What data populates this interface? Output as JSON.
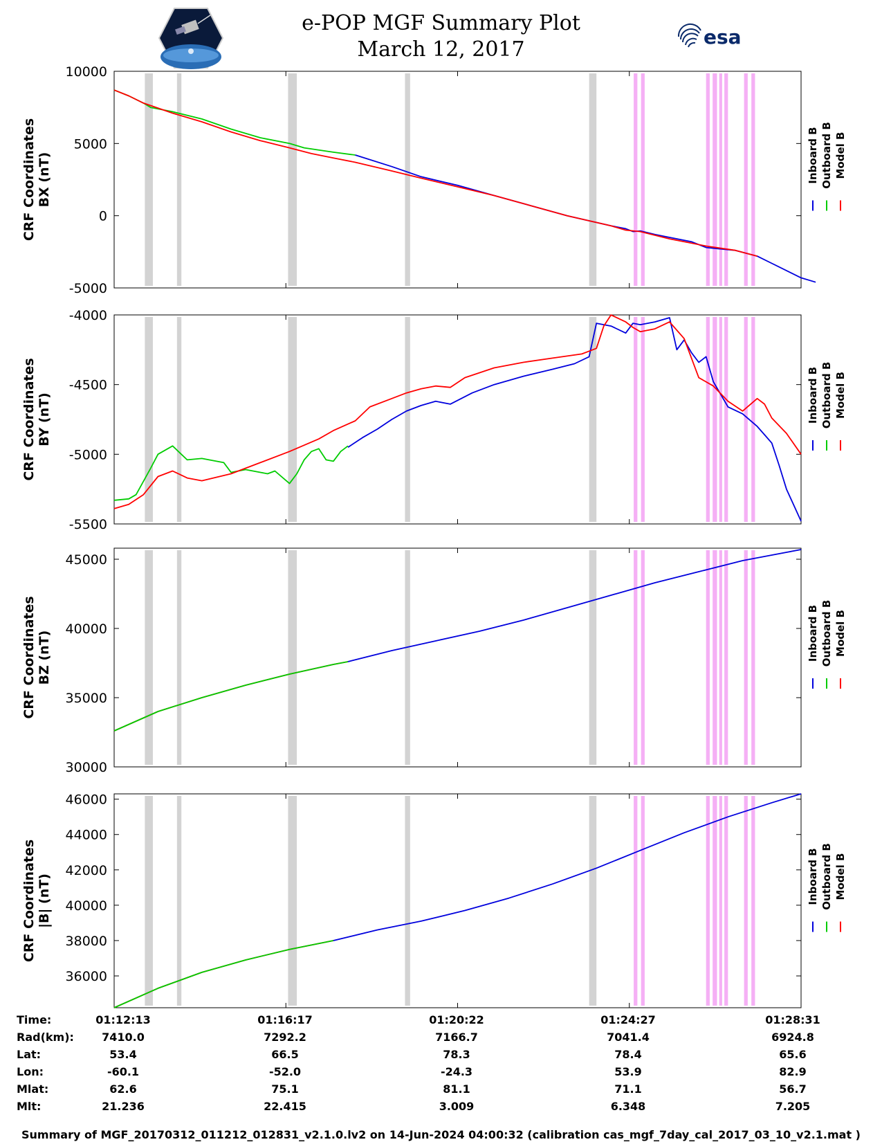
{
  "header": {
    "title": "e-POP MGF Summary Plot",
    "date": "March 12, 2017",
    "left_logo": "e-POP CASSIOPE satellite logo",
    "right_logo_text": "esa"
  },
  "chart_data": [
    {
      "type": "line",
      "name": "BX",
      "ylabel": [
        "CRF Coordinates",
        "BX (nT)"
      ],
      "ylim": [
        -5000,
        10000
      ],
      "yticks": [
        10000,
        5000,
        0,
        -5000
      ],
      "legend": [
        "Inboard B",
        "Outboard B",
        "Model B"
      ],
      "series": [
        {
          "name": "Outboard B",
          "color": "#00cc00",
          "x": [
            0,
            20,
            40,
            50,
            80,
            120,
            160,
            200,
            240,
            260,
            300,
            330
          ],
          "values": [
            8700,
            8300,
            7800,
            7500,
            7200,
            6700,
            6000,
            5400,
            5000,
            4700,
            4400,
            4200
          ]
        },
        {
          "name": "Inboard B",
          "color": "#0000dd",
          "x": [
            330,
            380,
            420,
            470,
            520,
            570,
            620,
            680,
            700,
            710,
            720,
            740,
            760,
            790,
            810,
            830,
            850,
            880,
            900,
            940,
            960
          ],
          "values": [
            4200,
            3400,
            2700,
            2100,
            1400,
            700,
            0,
            -700,
            -900,
            -1100,
            -1050,
            -1300,
            -1500,
            -1800,
            -2200,
            -2300,
            -2400,
            -2800,
            -3300,
            -4300,
            -4600
          ]
        },
        {
          "name": "Model B",
          "color": "#ff0000",
          "x": [
            0,
            20,
            40,
            80,
            120,
            160,
            200,
            240,
            270,
            300,
            330,
            380,
            420,
            470,
            520,
            570,
            620,
            680,
            700,
            720,
            760,
            790,
            810,
            850,
            880
          ],
          "values": [
            8700,
            8300,
            7800,
            7100,
            6500,
            5800,
            5200,
            4700,
            4300,
            4000,
            3700,
            3100,
            2600,
            2000,
            1400,
            700,
            0,
            -700,
            -1000,
            -1100,
            -1600,
            -1900,
            -2100,
            -2400,
            -2800
          ]
        }
      ]
    },
    {
      "type": "line",
      "name": "BY",
      "ylabel": [
        "CRF Coordinates",
        "BY (nT)"
      ],
      "ylim": [
        -5500,
        -4000
      ],
      "yticks": [
        -4000,
        -4500,
        -5000,
        -5500
      ],
      "legend": [
        "Inboard B",
        "Outboard B",
        "Model B"
      ],
      "series": [
        {
          "name": "Outboard B",
          "color": "#00cc00",
          "x": [
            0,
            20,
            30,
            50,
            60,
            80,
            100,
            120,
            130,
            150,
            160,
            180,
            200,
            210,
            220,
            240,
            250,
            260,
            270,
            280,
            290,
            300,
            310,
            320
          ],
          "values": [
            -5330,
            -5320,
            -5290,
            -5100,
            -5000,
            -4940,
            -5040,
            -5030,
            -5040,
            -5060,
            -5130,
            -5110,
            -5130,
            -5140,
            -5120,
            -5210,
            -5140,
            -5040,
            -4980,
            -4960,
            -5040,
            -5050,
            -4980,
            -4940
          ]
        },
        {
          "name": "Inboard B",
          "color": "#0000dd",
          "x": [
            320,
            340,
            360,
            380,
            400,
            420,
            440,
            460,
            490,
            520,
            560,
            600,
            630,
            650,
            660,
            680,
            700,
            710,
            720,
            740,
            760,
            770,
            780,
            790,
            800,
            810,
            820,
            840,
            860,
            880,
            890,
            900,
            910,
            920,
            940
          ],
          "values": [
            -4950,
            -4880,
            -4820,
            -4750,
            -4690,
            -4650,
            -4620,
            -4640,
            -4560,
            -4500,
            -4440,
            -4390,
            -4350,
            -4300,
            -4060,
            -4080,
            -4130,
            -4060,
            -4070,
            -4050,
            -4020,
            -4250,
            -4180,
            -4270,
            -4340,
            -4300,
            -4480,
            -4660,
            -4710,
            -4800,
            -4860,
            -4920,
            -5080,
            -5250,
            -5480
          ]
        },
        {
          "name": "Model B",
          "color": "#ff0000",
          "x": [
            0,
            20,
            40,
            60,
            80,
            100,
            120,
            160,
            200,
            240,
            280,
            300,
            330,
            350,
            380,
            400,
            420,
            440,
            460,
            480,
            520,
            560,
            600,
            640,
            660,
            670,
            680,
            700,
            710,
            720,
            740,
            760,
            780,
            800,
            820,
            840,
            860,
            880,
            890,
            900,
            920,
            940
          ],
          "values": [
            -5390,
            -5360,
            -5290,
            -5160,
            -5120,
            -5170,
            -5190,
            -5140,
            -5060,
            -4980,
            -4890,
            -4830,
            -4760,
            -4660,
            -4600,
            -4560,
            -4530,
            -4510,
            -4520,
            -4450,
            -4380,
            -4340,
            -4310,
            -4280,
            -4240,
            -4080,
            -4000,
            -4050,
            -4090,
            -4120,
            -4100,
            -4050,
            -4170,
            -4450,
            -4510,
            -4620,
            -4690,
            -4600,
            -4640,
            -4740,
            -4850,
            -5000
          ]
        }
      ]
    },
    {
      "type": "line",
      "name": "BZ",
      "ylabel": [
        "CRF Coordinates",
        "BZ (nT)"
      ],
      "ylim": [
        30000,
        45800
      ],
      "yticks": [
        45000,
        40000,
        35000,
        30000
      ],
      "legend": [
        "Inboard B",
        "Outboard B",
        "Model B"
      ],
      "series": [
        {
          "name": "Model B",
          "color": "#ff0000",
          "x": [
            0,
            60,
            120,
            180,
            240,
            300,
            320
          ],
          "values": [
            32600,
            34000,
            35000,
            35900,
            36700,
            37400,
            37600
          ]
        },
        {
          "name": "Outboard B",
          "color": "#00cc00",
          "x": [
            0,
            60,
            120,
            180,
            240,
            300,
            320
          ],
          "values": [
            32600,
            34000,
            35000,
            35900,
            36700,
            37400,
            37600
          ]
        },
        {
          "name": "Inboard B",
          "color": "#0000dd",
          "x": [
            320,
            380,
            440,
            500,
            560,
            620,
            680,
            740,
            800,
            860,
            920,
            940
          ],
          "values": [
            37600,
            38400,
            39100,
            39800,
            40600,
            41500,
            42400,
            43300,
            44100,
            44900,
            45500,
            45700
          ]
        }
      ]
    },
    {
      "type": "line",
      "name": "|B|",
      "ylabel": [
        "CRF Coordinates",
        "|B| (nT)"
      ],
      "ylim": [
        34200,
        46300
      ],
      "yticks": [
        46000,
        44000,
        42000,
        40000,
        38000,
        36000
      ],
      "legend": [
        "Inboard B",
        "Outboard B",
        "Model B"
      ],
      "series": [
        {
          "name": "Model B",
          "color": "#ff0000",
          "x": [
            0,
            60,
            120,
            180,
            240,
            300
          ],
          "values": [
            34200,
            35300,
            36200,
            36900,
            37500,
            38000
          ]
        },
        {
          "name": "Outboard B",
          "color": "#00cc00",
          "x": [
            0,
            60,
            120,
            180,
            240,
            300
          ],
          "values": [
            34200,
            35300,
            36200,
            36900,
            37500,
            38000
          ]
        },
        {
          "name": "Inboard B",
          "color": "#0000dd",
          "x": [
            300,
            360,
            420,
            480,
            540,
            600,
            660,
            720,
            780,
            840,
            900,
            940
          ],
          "values": [
            38000,
            38600,
            39100,
            39700,
            40400,
            41200,
            42100,
            43100,
            44100,
            45000,
            45800,
            46300
          ]
        }
      ]
    }
  ],
  "gray_bands": [
    [
      42,
      53
    ],
    [
      86,
      92
    ],
    [
      238,
      250
    ],
    [
      398,
      405
    ],
    [
      650,
      660
    ]
  ],
  "magenta_bands": [
    [
      711,
      716
    ],
    [
      721,
      726
    ],
    [
      810,
      815
    ],
    [
      819,
      825
    ],
    [
      828,
      832
    ],
    [
      835,
      840
    ],
    [
      862,
      867
    ],
    [
      872,
      877
    ]
  ],
  "x_domain": [
    0,
    940
  ],
  "footer_table": {
    "row_labels": [
      "Time:",
      "Rad(km):",
      "Lat:",
      "Lon:",
      "Mlat:",
      "Mlt:"
    ],
    "columns": [
      [
        "01:12:13",
        "7410.0",
        "53.4",
        "-60.1",
        "62.6",
        "21.236"
      ],
      [
        "01:16:17",
        "7292.2",
        "66.5",
        "-52.0",
        "75.1",
        "22.415"
      ],
      [
        "01:20:22",
        "7166.7",
        "78.3",
        "-24.3",
        "81.1",
        "3.009"
      ],
      [
        "01:24:27",
        "7041.4",
        "78.4",
        "53.9",
        "71.1",
        "6.348"
      ],
      [
        "01:28:31",
        "6924.8",
        "65.6",
        "82.9",
        "56.7",
        "7.205"
      ]
    ]
  },
  "footer_note": "Summary of MGF_20170312_011212_012831_v2.1.0.lv2 on 14-Jun-2024 04:00:32 (calibration cas_mgf_7day_cal_2017_03_10_v2.1.mat )",
  "colors": {
    "inboard": "#0000dd",
    "outboard": "#00cc00",
    "model": "#ff0000",
    "gray_band": "#d3d3d3",
    "magenta_band": "#f5b0f5"
  }
}
